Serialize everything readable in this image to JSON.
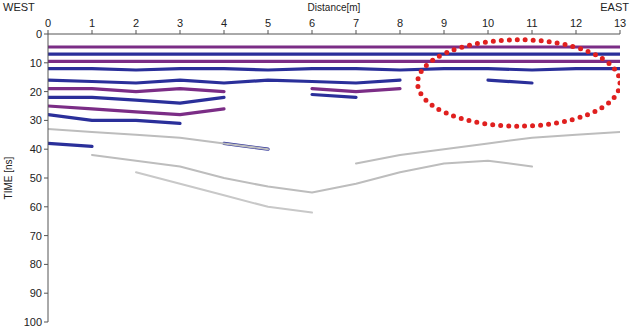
{
  "chart_data": {
    "type": "line",
    "x_start_label": "WEST",
    "x_end_label": "EAST",
    "x_label": "Distance[m]",
    "y_label": "TIME [ns]",
    "x": [
      0,
      1,
      2,
      3,
      4,
      5,
      6,
      7,
      8,
      9,
      10,
      11,
      12,
      13
    ],
    "xlim": [
      0,
      13
    ],
    "xticks": [
      0,
      1,
      2,
      3,
      4,
      5,
      6,
      7,
      8,
      9,
      10,
      11,
      12,
      13
    ],
    "ylim": [
      0,
      100
    ],
    "yticks": [
      0,
      10,
      20,
      30,
      40,
      50,
      60,
      70,
      80,
      90,
      100
    ],
    "grid": false,
    "series": [
      {
        "color": "#7b2d86",
        "values": [
          4.5,
          4.5,
          4.5,
          4.5,
          4.5,
          4.5,
          4.5,
          4.5,
          4.5,
          4.5,
          4.5,
          4.5,
          4.5,
          4.5
        ]
      },
      {
        "color": "#2a2f9a",
        "values": [
          7,
          7,
          7,
          7,
          7,
          7,
          7,
          7,
          7,
          7,
          7,
          7,
          7,
          7
        ]
      },
      {
        "color": "#7b2d86",
        "values": [
          9.5,
          9.5,
          9.5,
          9.5,
          9.5,
          9.5,
          9.5,
          9.5,
          9.5,
          9.5,
          9.5,
          9.5,
          9.5,
          9.5
        ]
      },
      {
        "color": "#2a2f9a",
        "values": [
          12,
          12,
          12.5,
          12,
          12,
          12.5,
          12,
          12,
          12.5,
          12,
          12,
          12.5,
          12,
          12
        ]
      },
      {
        "color": "#2a2f9a",
        "values": [
          16,
          16.5,
          17,
          16,
          17,
          16,
          16.5,
          17,
          16,
          null,
          16,
          17,
          null,
          null
        ]
      },
      {
        "color": "#7b2d86",
        "values": [
          19,
          19,
          20,
          19,
          20,
          null,
          19,
          20,
          19,
          null,
          null,
          null,
          null,
          null
        ]
      },
      {
        "color": "#2a2f9a",
        "values": [
          22,
          22,
          23,
          24,
          22,
          null,
          21,
          22,
          null,
          null,
          null,
          null,
          null,
          null
        ]
      },
      {
        "color": "#7b2d86",
        "values": [
          25,
          26,
          27,
          28,
          26,
          null,
          null,
          null,
          null,
          null,
          null,
          null,
          null,
          null
        ]
      },
      {
        "color": "#2a2f9a",
        "values": [
          28,
          30,
          30,
          31,
          null,
          null,
          null,
          null,
          null,
          null,
          null,
          null,
          null,
          null
        ]
      },
      {
        "color": "#2a2f9a",
        "values": [
          38,
          39,
          null,
          null,
          38,
          40,
          null,
          null,
          null,
          null,
          null,
          null,
          null,
          null
        ]
      },
      {
        "color": "#bdbdbd",
        "values": [
          33,
          34,
          35,
          36,
          38,
          40,
          null,
          45,
          42,
          40,
          38,
          36,
          35,
          34
        ]
      },
      {
        "color": "#bdbdbd",
        "values": [
          null,
          42,
          44,
          46,
          50,
          53,
          55,
          52,
          48,
          45,
          44,
          46,
          null,
          null
        ]
      },
      {
        "color": "#c8c8c8",
        "values": [
          null,
          null,
          48,
          52,
          56,
          60,
          62,
          null,
          null,
          null,
          null,
          null,
          null,
          null
        ]
      }
    ],
    "highlight": {
      "x": 10.7,
      "y": 17,
      "x_radius": 2.3,
      "y_radius": 15,
      "color": "#e0201f"
    }
  }
}
